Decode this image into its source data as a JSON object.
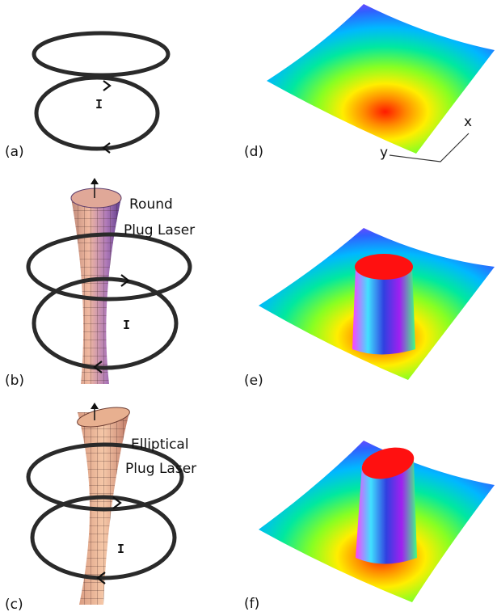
{
  "left_panels": [
    {
      "label": "(a)",
      "current_label": "I"
    },
    {
      "label": "(b)",
      "current_label": "I",
      "laser_label": [
        "Round",
        "Plug Laser"
      ]
    },
    {
      "label": "(c)",
      "current_label": "I",
      "laser_label": [
        "Elliptical",
        "Plug Laser"
      ]
    }
  ],
  "right_panels": [
    {
      "label": "(d)",
      "axis_labels": {
        "x": "x",
        "y": "y"
      }
    },
    {
      "label": "(e)"
    },
    {
      "label": "(f)"
    }
  ]
}
